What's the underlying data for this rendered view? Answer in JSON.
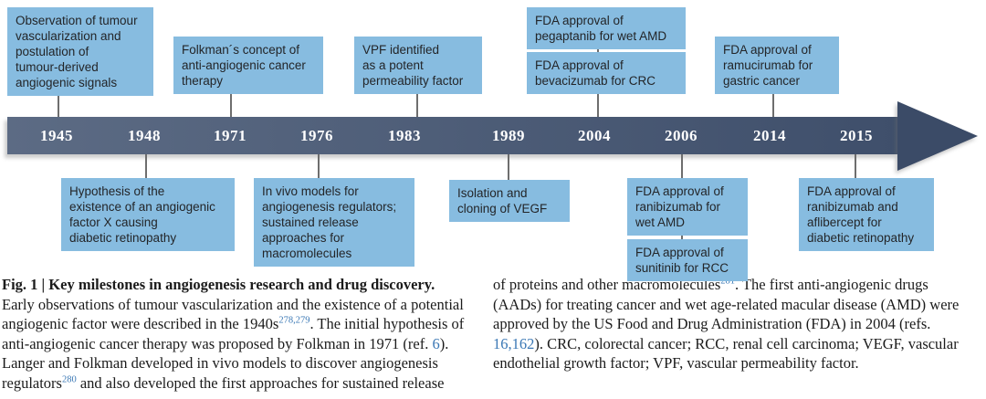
{
  "timeline": {
    "years": [
      "1945",
      "1948",
      "1971",
      "1976",
      "1983",
      "1989",
      "2004",
      "2006",
      "2014",
      "2015"
    ],
    "top_events": [
      {
        "year": "1945",
        "text": "Observation of tumour\nvascularization and\npostulation of\ntumour-derived\nangiogenic signals"
      },
      {
        "year": "1971",
        "text": "Folkman´s concept of\nanti-angiogenic cancer\ntherapy"
      },
      {
        "year": "1983",
        "text": "VPF identified\nas a potent\npermeability factor"
      },
      {
        "year": "2004",
        "text": "FDA approval of\npegaptanib for wet AMD"
      },
      {
        "year": "2004",
        "text": "FDA approval of\nbevacizumab for CRC"
      },
      {
        "year": "2014",
        "text": "FDA approval of\nramucirumab for\ngastric cancer"
      }
    ],
    "bottom_events": [
      {
        "year": "1948",
        "text": "Hypothesis of the\nexistence of an angiogenic\nfactor X causing\ndiabetic retinopathy"
      },
      {
        "year": "1976",
        "text": "In vivo models for\nangiogenesis regulators;\nsustained release\napproaches for\nmacromolecules"
      },
      {
        "year": "1989",
        "text": "Isolation and\ncloning of VEGF"
      },
      {
        "year": "2006",
        "text": "FDA approval of\nranibizumab for\nwet AMD"
      },
      {
        "year": "2006",
        "text": "FDA approval of\nsunitinib for RCC"
      },
      {
        "year": "2015",
        "text": "FDA approval of\nranibizumab and\naflibercept for\ndiabetic retinopathy"
      }
    ],
    "colors": {
      "event_box": "#87bce0",
      "band_start": "#5c6b84",
      "band_end": "#3f4f6b",
      "arrowhead": "#3b4b67",
      "year_text": "#ffffff",
      "reference_link": "#3b78b5"
    }
  },
  "caption": {
    "left_column": [
      {
        "s": "bold",
        "t": "Fig. 1 | Key milestones in angiogenesis research and drug discovery."
      },
      {
        "s": "normal",
        "t": "Early observations of tumour vascularization and the existence of a potential angiogenic factor were described in the 1940s"
      },
      {
        "s": "sup",
        "t": "278,279"
      },
      {
        "s": "normal",
        "t": ". The initial hypothesis of anti-angiogenic cancer therapy was proposed by Folkman in 1971 (ref. "
      },
      {
        "s": "link",
        "t": "6"
      },
      {
        "s": "normal",
        "t": "). Langer and Folkman developed in vivo models to discover angiogenesis regulators"
      },
      {
        "s": "sup",
        "t": "280"
      },
      {
        "s": "normal",
        "t": " and also developed the first approaches for sustained release"
      }
    ],
    "right_column": [
      {
        "s": "normal",
        "t": "of proteins and other macromolecules"
      },
      {
        "s": "sup",
        "t": "281"
      },
      {
        "s": "normal",
        "t": ". The first anti-angiogenic drugs (AADs) for treating cancer and wet age-related macular disease (AMD) were approved by the US Food and Drug Administration (FDA) in 2004 (refs. "
      },
      {
        "s": "link",
        "t": "16,162"
      },
      {
        "s": "normal",
        "t": "). CRC, colorectal cancer; RCC, renal cell carcinoma; VEGF, vascular endothelial growth factor; VPF, vascular permeability factor."
      }
    ]
  }
}
